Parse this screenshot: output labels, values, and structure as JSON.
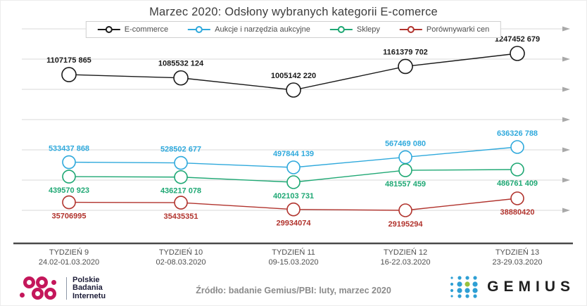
{
  "title": "Marzec 2020: Odsłony wybranych kategorii E-comerce",
  "chart_data": {
    "type": "line",
    "title": "Marzec 2020: Odsłony wybranych kategorii E-comerce",
    "legend_position": "top",
    "grid": true,
    "x_axis_style": "arrow-gridlines, unlabeled value axis",
    "weeks": [
      {
        "label": "TYDZIEŃ 9",
        "range": "24.02-01.03.2020"
      },
      {
        "label": "TYDZIEŃ 10",
        "range": "02-08.03.2020"
      },
      {
        "label": "TYDZIEŃ 11",
        "range": "09-15.03.2020"
      },
      {
        "label": "TYDZIEŃ 12",
        "range": "16-22.03.2020"
      },
      {
        "label": "TYDZIEŃ 13",
        "range": "23-29.03.2020"
      }
    ],
    "categories": [
      "TYDZIEŃ 9",
      "TYDZIEŃ 10",
      "TYDZIEŃ 11",
      "TYDZIEŃ 12",
      "TYDZIEŃ 13"
    ],
    "series": [
      {
        "name": "E-commerce",
        "color": "#1a1a1a",
        "values": [
          1107175865,
          1085532124,
          1005142220,
          1161379702,
          1247452679
        ],
        "labels": [
          "1107175 865",
          "1085532 124",
          "1005142 220",
          "1161379 702",
          "1247452 679"
        ],
        "label_position": "above"
      },
      {
        "name": "Aukcje i narzędzia aukcyjne",
        "color": "#2FA9DC",
        "values": [
          533437868,
          528502677,
          497844139,
          567469080,
          636326788
        ],
        "labels": [
          "533437 868",
          "528502 677",
          "497844 139",
          "567469 080",
          "636326 788"
        ],
        "label_position": "above"
      },
      {
        "name": "Sklepy",
        "color": "#1FA874",
        "values": [
          439570923,
          436217078,
          402103731,
          481557459,
          486761409
        ],
        "labels": [
          "439570 923",
          "436217 078",
          "402103 731",
          "481557 459",
          "486761 409"
        ],
        "label_position": "below"
      },
      {
        "name": "Porównywarki cen",
        "color": "#B1332D",
        "values": [
          35706995,
          35435351,
          29934074,
          29195294,
          38880420
        ],
        "labels": [
          "35706995",
          "35435351",
          "29934074",
          "29195294",
          "38880420"
        ],
        "label_position": "below"
      }
    ]
  },
  "footer": {
    "source": "Źródło: badanie Gemius/PBI: luty, marzec 2020",
    "pbi_logo": {
      "line1": "Polskie",
      "line2": "Badania",
      "line3": "Internetu",
      "color": "#C4175B"
    },
    "gemius_logo": {
      "text": "GEMIUS",
      "dot_color": "#2E9FD4",
      "accent_dot_color": "#97C23C"
    }
  }
}
